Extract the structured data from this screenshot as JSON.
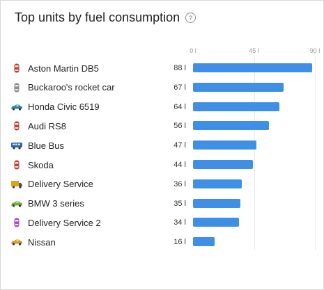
{
  "widget": {
    "title": "Top units by fuel consumption",
    "help_glyph": "?"
  },
  "colors": {
    "bar": "#3f8fe6",
    "gridline": "#e8e8e8",
    "text": "#222222"
  },
  "chart_data": {
    "type": "bar",
    "orientation": "horizontal",
    "ticks": [
      "0 l",
      "45 l",
      "90 l"
    ],
    "xlim": [
      0,
      90
    ],
    "grid": true,
    "categories": [
      "Aston Martin DB5",
      "Buckaroo's rocket car",
      "Honda Civic 6519",
      "Audi RS8",
      "Blue Bus",
      "Skoda",
      "Delivery Service",
      "BMW 3 series",
      "Delivery Service 2",
      "Nissan"
    ],
    "values": [
      88,
      67,
      64,
      56,
      47,
      44,
      36,
      35,
      34,
      16
    ],
    "value_labels": [
      "88 l",
      "67 l",
      "64 l",
      "56 l",
      "47 l",
      "44 l",
      "36 l",
      "35 l",
      "34 l",
      "16 l"
    ],
    "icons": [
      "red-car-icon",
      "gray-car-icon",
      "teal-car-icon",
      "red-car-icon",
      "blue-bus-icon",
      "red-car-icon",
      "yellow-truck-icon",
      "green-car-icon",
      "purple-car-icon",
      "yellow-car-icon"
    ],
    "icon_colors": [
      "#c8412f",
      "#8b8b8b",
      "#2e8a95",
      "#c8412f",
      "#2d5fa8",
      "#c8412f",
      "#e0a21b",
      "#6fae3b",
      "#a44fc0",
      "#d69b1f"
    ]
  }
}
